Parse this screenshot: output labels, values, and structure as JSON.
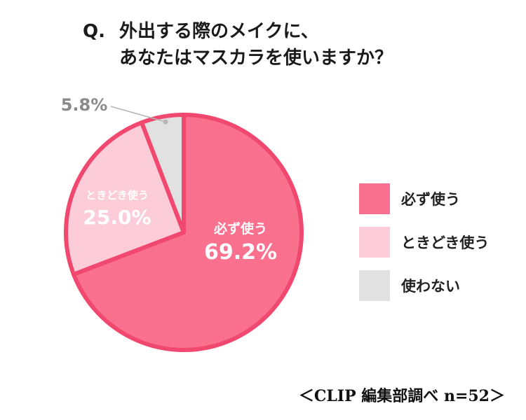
{
  "title": {
    "prefix": "Q.",
    "line1": "外出する際のメイクに、",
    "line2": "あなたはマスカラを使いますか？"
  },
  "source": "＜CLIP 編集部調べ n=52＞",
  "chart_data": {
    "type": "pie",
    "title": "Q. 外出する際のメイクに、あなたはマスカラを使いますか？",
    "slices": [
      {
        "label": "必ず使う",
        "value": 69.2,
        "display": "69.2%",
        "color": "#f9718e"
      },
      {
        "label": "ときどき使う",
        "value": 25.0,
        "display": "25.0%",
        "color": "#fccdd8"
      },
      {
        "label": "使わない",
        "value": 5.8,
        "display": "5.8%",
        "color": "#e1e1e1"
      }
    ],
    "border_color": "#f0486e",
    "legend_position": "right"
  }
}
